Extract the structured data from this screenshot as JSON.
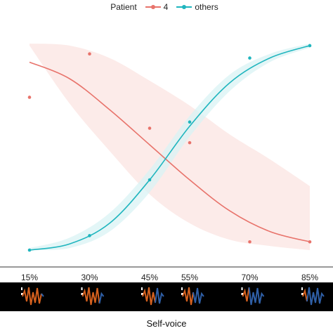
{
  "chart_data": {
    "type": "line",
    "legend": {
      "title": "Patient",
      "entries": [
        "4",
        "others"
      ],
      "placement": "top"
    },
    "categories": [
      "15%",
      "30%",
      "45%",
      "55%",
      "70%",
      "85%"
    ],
    "x_values": [
      15,
      30,
      45,
      55,
      70,
      85
    ],
    "series": [
      {
        "name": "4",
        "color": "#E8736B",
        "band_color": "#FBE4E2",
        "points": [
          0.74,
          0.95,
          0.59,
          0.52,
          0.04,
          0.04
        ],
        "fit": [
          [
            15,
            0.91
          ],
          [
            25,
            0.83
          ],
          [
            35,
            0.68
          ],
          [
            45,
            0.51
          ],
          [
            55,
            0.34
          ],
          [
            65,
            0.19
          ],
          [
            75,
            0.09
          ],
          [
            85,
            0.04
          ]
        ],
        "band_upper": [
          [
            15,
            1.0
          ],
          [
            25,
            0.99
          ],
          [
            35,
            0.93
          ],
          [
            45,
            0.82
          ],
          [
            55,
            0.7
          ],
          [
            65,
            0.56
          ],
          [
            75,
            0.44
          ],
          [
            85,
            0.31
          ]
        ],
        "band_lower": [
          [
            15,
            0.99
          ],
          [
            25,
            0.71
          ],
          [
            35,
            0.48
          ],
          [
            45,
            0.27
          ],
          [
            55,
            0.13
          ],
          [
            65,
            0.05
          ],
          [
            75,
            0.02
          ],
          [
            85,
            0.0
          ]
        ]
      },
      {
        "name": "others",
        "color": "#1FB5BE",
        "band_color": "#D9F3F4",
        "points": [
          0.0,
          0.07,
          0.34,
          0.62,
          0.93,
          0.99
        ],
        "fit": [
          [
            15,
            0.0
          ],
          [
            25,
            0.03
          ],
          [
            35,
            0.13
          ],
          [
            45,
            0.34
          ],
          [
            55,
            0.6
          ],
          [
            65,
            0.81
          ],
          [
            75,
            0.93
          ],
          [
            85,
            0.99
          ]
        ],
        "band_upper": [
          [
            15,
            0.01
          ],
          [
            25,
            0.06
          ],
          [
            35,
            0.18
          ],
          [
            45,
            0.39
          ],
          [
            55,
            0.65
          ],
          [
            65,
            0.85
          ],
          [
            75,
            0.95
          ],
          [
            85,
            1.0
          ]
        ],
        "band_lower": [
          [
            15,
            0.0
          ],
          [
            25,
            0.01
          ],
          [
            35,
            0.09
          ],
          [
            45,
            0.28
          ],
          [
            55,
            0.55
          ],
          [
            65,
            0.77
          ],
          [
            75,
            0.91
          ],
          [
            85,
            0.98
          ]
        ]
      }
    ],
    "xlabel": "Self-voice",
    "ylabel": "",
    "ylim": [
      0,
      1
    ],
    "xlim": [
      15,
      85
    ],
    "grid": false,
    "waveform_icons": {
      "count": 6,
      "colors": {
        "self": "#D4601E",
        "other": "#2F5FA6",
        "background": "#000000"
      },
      "self_fraction": [
        0.85,
        0.7,
        0.55,
        0.45,
        0.3,
        0.15
      ]
    }
  }
}
